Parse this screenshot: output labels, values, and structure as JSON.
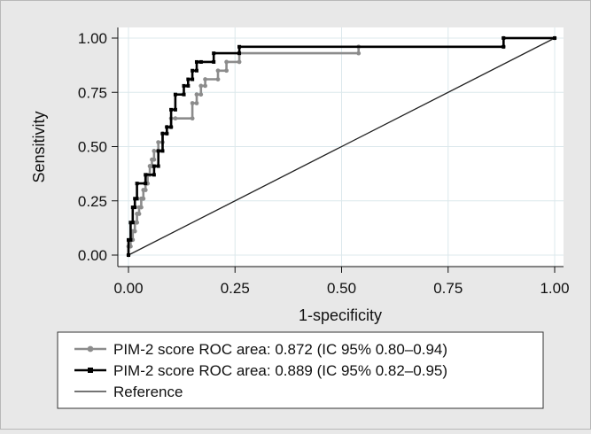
{
  "chart_data": {
    "type": "line",
    "xlabel": "1-specificity",
    "ylabel": "Sensitivity",
    "xlim": [
      0,
      1
    ],
    "ylim": [
      0,
      1
    ],
    "xticks": [
      "0.00",
      "0.25",
      "0.50",
      "0.75",
      "1.00"
    ],
    "yticks": [
      "0.00",
      "0.25",
      "0.50",
      "0.75",
      "1.00"
    ],
    "grid": true,
    "legend_position": "bottom",
    "series": [
      {
        "name": "PIM-2 score ROC area: 0.872 (IC 95% 0.80–0.94)",
        "color": "#8c8c8c",
        "marker": "circle",
        "x": [
          0.0,
          0.0,
          0.005,
          0.005,
          0.01,
          0.01,
          0.015,
          0.015,
          0.02,
          0.02,
          0.025,
          0.025,
          0.03,
          0.03,
          0.035,
          0.035,
          0.04,
          0.04,
          0.045,
          0.045,
          0.05,
          0.05,
          0.055,
          0.055,
          0.06,
          0.06,
          0.07,
          0.07,
          0.08,
          0.08,
          0.09,
          0.09,
          0.1,
          0.1,
          0.11,
          0.15,
          0.15,
          0.16,
          0.16,
          0.17,
          0.17,
          0.18,
          0.18,
          0.21,
          0.21,
          0.23,
          0.23,
          0.26,
          0.26,
          0.54,
          0.54,
          0.88,
          0.88,
          1.0
        ],
        "y": [
          0.0,
          0.04,
          0.04,
          0.07,
          0.07,
          0.11,
          0.11,
          0.15,
          0.15,
          0.19,
          0.19,
          0.22,
          0.22,
          0.26,
          0.26,
          0.3,
          0.3,
          0.33,
          0.33,
          0.37,
          0.37,
          0.41,
          0.41,
          0.44,
          0.44,
          0.48,
          0.48,
          0.52,
          0.52,
          0.56,
          0.56,
          0.59,
          0.59,
          0.63,
          0.63,
          0.63,
          0.7,
          0.7,
          0.74,
          0.74,
          0.78,
          0.78,
          0.81,
          0.81,
          0.85,
          0.85,
          0.89,
          0.89,
          0.93,
          0.93,
          0.96,
          0.96,
          1.0,
          1.0
        ]
      },
      {
        "name": "PIM-2 score ROC area: 0.889 (IC 95% 0.82–0.95)",
        "color": "#000000",
        "marker": "square",
        "x": [
          0.0,
          0.0,
          0.005,
          0.005,
          0.01,
          0.01,
          0.015,
          0.015,
          0.02,
          0.02,
          0.04,
          0.04,
          0.06,
          0.06,
          0.07,
          0.07,
          0.08,
          0.08,
          0.09,
          0.09,
          0.1,
          0.1,
          0.11,
          0.11,
          0.13,
          0.13,
          0.14,
          0.14,
          0.15,
          0.15,
          0.16,
          0.16,
          0.17,
          0.17,
          0.2,
          0.2,
          0.26,
          0.26,
          0.88,
          0.88,
          1.0
        ],
        "y": [
          0.0,
          0.07,
          0.07,
          0.15,
          0.15,
          0.22,
          0.22,
          0.26,
          0.26,
          0.33,
          0.33,
          0.37,
          0.37,
          0.41,
          0.41,
          0.48,
          0.48,
          0.56,
          0.56,
          0.59,
          0.59,
          0.67,
          0.67,
          0.74,
          0.74,
          0.78,
          0.78,
          0.81,
          0.81,
          0.85,
          0.85,
          0.89,
          0.89,
          0.89,
          0.89,
          0.93,
          0.93,
          0.96,
          0.96,
          1.0,
          1.0
        ]
      },
      {
        "name": "Reference",
        "color": "#222222",
        "marker": "none",
        "x": [
          0.0,
          1.0
        ],
        "y": [
          0.0,
          1.0
        ]
      }
    ]
  }
}
